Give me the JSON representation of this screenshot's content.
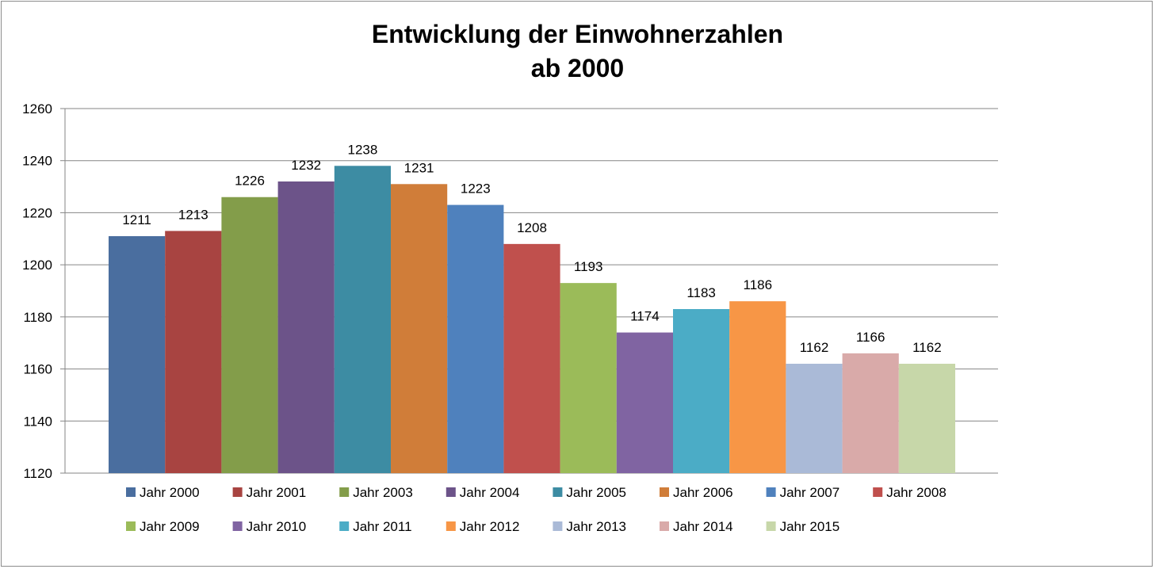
{
  "chart_data": {
    "type": "bar",
    "title": [
      "Entwicklung der Einwohnerzahlen",
      "ab 2000"
    ],
    "xlabel": "",
    "ylabel": "",
    "ylim": [
      1120,
      1260
    ],
    "yticks": [
      1120,
      1140,
      1160,
      1180,
      1200,
      1220,
      1240,
      1260
    ],
    "grid": true,
    "legend_position": "bottom",
    "series": [
      {
        "name": "Jahr 2000",
        "value": 1211,
        "color": "#4A6E9F"
      },
      {
        "name": "Jahr 2001",
        "value": 1213,
        "color": "#A84441"
      },
      {
        "name": "Jahr 2003",
        "value": 1226,
        "color": "#839D4A"
      },
      {
        "name": "Jahr 2004",
        "value": 1232,
        "color": "#6C5389"
      },
      {
        "name": "Jahr 2005",
        "value": 1238,
        "color": "#3D8CA3"
      },
      {
        "name": "Jahr 2006",
        "value": 1231,
        "color": "#D07D39"
      },
      {
        "name": "Jahr 2007",
        "value": 1223,
        "color": "#4F81BD"
      },
      {
        "name": "Jahr 2008",
        "value": 1208,
        "color": "#C0504D"
      },
      {
        "name": "Jahr 2009",
        "value": 1193,
        "color": "#9BBB59"
      },
      {
        "name": "Jahr 2010",
        "value": 1174,
        "color": "#8064A2"
      },
      {
        "name": "Jahr 2011",
        "value": 1183,
        "color": "#4BACC6"
      },
      {
        "name": "Jahr 2012",
        "value": 1186,
        "color": "#F79646"
      },
      {
        "name": "Jahr 2013",
        "value": 1162,
        "color": "#AABAD7"
      },
      {
        "name": "Jahr 2014",
        "value": 1166,
        "color": "#D9AAA9"
      },
      {
        "name": "Jahr 2015",
        "value": 1162,
        "color": "#C7D7A9"
      }
    ]
  }
}
